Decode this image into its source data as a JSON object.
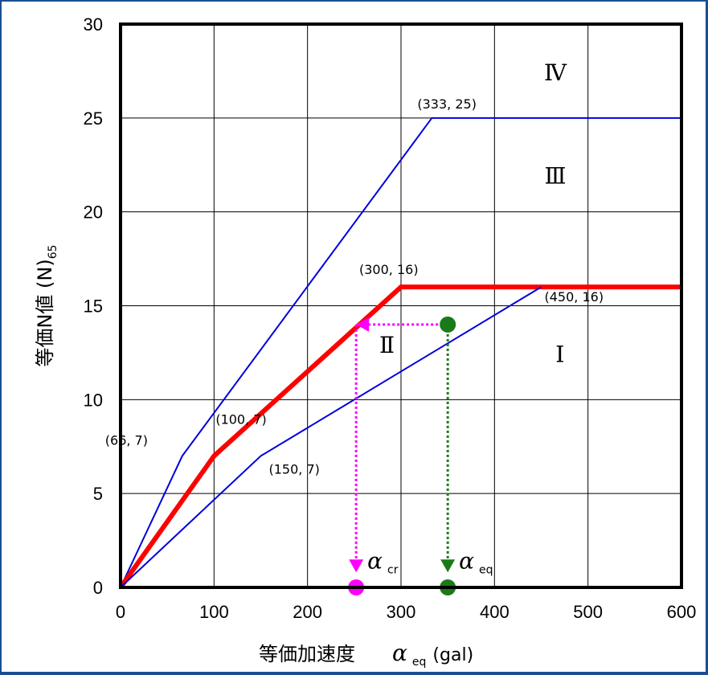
{
  "chart_data": {
    "type": "line",
    "xlim": [
      0,
      600
    ],
    "ylim": [
      0,
      30
    ],
    "x_ticks": [
      "0",
      "100",
      "200",
      "300",
      "400",
      "500",
      "600"
    ],
    "y_ticks": [
      "0",
      "5",
      "10",
      "15",
      "20",
      "25",
      "30"
    ],
    "grid": true,
    "xlabel": {
      "main": "等価加速度",
      "symbol": "α",
      "sub": "eq",
      "unit": "(gal)"
    },
    "ylabel": {
      "main": "等価N値 (N)",
      "sub": "65"
    },
    "series": [
      {
        "color": "#0000dd",
        "width": 2,
        "points": [
          [
            0,
            0
          ],
          [
            66,
            7
          ],
          [
            333,
            25
          ],
          [
            600,
            25
          ]
        ]
      },
      {
        "color": "#ff0000",
        "width": 6,
        "points": [
          [
            0,
            0
          ],
          [
            100,
            7
          ],
          [
            300,
            16
          ],
          [
            600,
            16
          ]
        ]
      },
      {
        "color": "#0000dd",
        "width": 2,
        "points": [
          [
            0,
            0
          ],
          [
            150,
            7
          ],
          [
            450,
            16
          ]
        ]
      }
    ],
    "point_labels": [
      {
        "text": "(66, 7)",
        "x": 66,
        "y": 7
      },
      {
        "text": "(100, 7)",
        "x": 100,
        "y": 7
      },
      {
        "text": "(150, 7)",
        "x": 150,
        "y": 7
      },
      {
        "text": "(300, 16)",
        "x": 300,
        "y": 16
      },
      {
        "text": "(450, 16)",
        "x": 450,
        "y": 16
      },
      {
        "text": "(333, 25)",
        "x": 333,
        "y": 25
      }
    ],
    "zones": [
      {
        "text": "Ⅰ",
        "x": 470,
        "y": 12
      },
      {
        "text": "Ⅱ",
        "x": 285,
        "y": 12.5
      },
      {
        "text": "Ⅲ",
        "x": 465,
        "y": 21.5
      },
      {
        "text": "Ⅳ",
        "x": 465,
        "y": 27
      }
    ],
    "markers": [
      {
        "name": "alpha-eq-point",
        "color": "#1a7a1a",
        "x": 350,
        "y": 14
      },
      {
        "name": "alpha-eq-axis-point",
        "color": "#1a7a1a",
        "x": 350,
        "y": 0
      },
      {
        "name": "alpha-cr-axis-point",
        "color": "#ff00ff",
        "x": 252,
        "y": 0
      }
    ],
    "arrows": [
      {
        "name": "alpha-eq-vertical-arrow",
        "color": "#1a7a1a",
        "from": [
          350,
          14
        ],
        "to": [
          350,
          0.8
        ]
      },
      {
        "name": "horizontal-arrow",
        "color": "#ff00ff",
        "from": [
          350,
          14
        ],
        "to": [
          252,
          14
        ]
      },
      {
        "name": "alpha-cr-vertical-arrow",
        "color": "#ff00ff",
        "from": [
          252,
          14
        ],
        "to": [
          252,
          0.8
        ]
      }
    ],
    "alpha_labels": [
      {
        "symbol": "α",
        "sub": "cr",
        "x": 264,
        "y": 1
      },
      {
        "symbol": "α",
        "sub": "eq",
        "x": 362,
        "y": 1
      }
    ]
  }
}
